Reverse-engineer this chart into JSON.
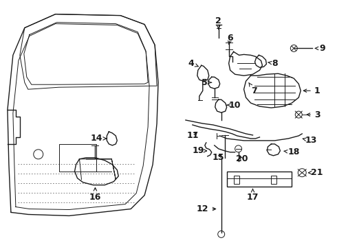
{
  "bg_color": "#ffffff",
  "line_color": "#1a1a1a",
  "figsize": [
    4.9,
    3.6
  ],
  "dpi": 100,
  "label_fontsize": 9,
  "label_fontweight": "bold"
}
